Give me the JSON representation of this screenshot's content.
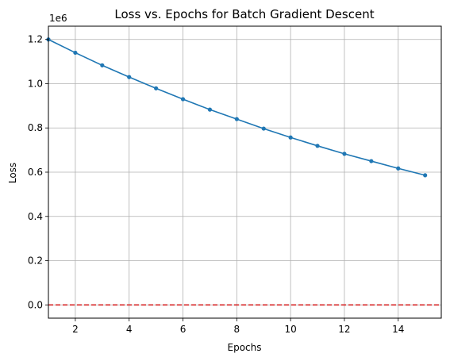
{
  "chart_data": {
    "type": "line",
    "title": "Loss vs. Epochs for Batch Gradient Descent",
    "xlabel": "Epochs",
    "ylabel": "Loss",
    "y_offset_label": "1e6",
    "xlim": [
      1,
      15.6
    ],
    "ylim": [
      -60000,
      1260000
    ],
    "xticks": [
      2,
      4,
      6,
      8,
      10,
      12,
      14
    ],
    "yticks": [
      0.0,
      0.2,
      0.4,
      0.6,
      0.8,
      1.0,
      1.2
    ],
    "ytick_scale": 1000000,
    "grid": true,
    "x": [
      1,
      2,
      3,
      4,
      5,
      6,
      7,
      8,
      9,
      10,
      11,
      12,
      13,
      14,
      15
    ],
    "series": [
      {
        "values": [
          1200000,
          1140000,
          1083000,
          1030000,
          979000,
          930000,
          883000,
          840000,
          797000,
          757000,
          719000,
          683000,
          650000,
          617000,
          586000
        ],
        "color": "#1f77b4",
        "marker": "circle"
      }
    ],
    "reference_lines": [
      {
        "y": 0,
        "color": "#d62728",
        "style": "dashed"
      }
    ]
  }
}
